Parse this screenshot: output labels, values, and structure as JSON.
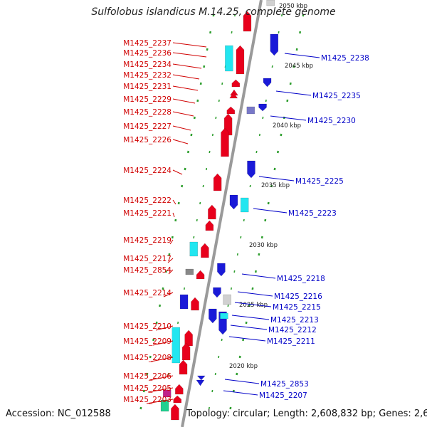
{
  "title": "Sulfolobus islandicus M.14.25, complete genome",
  "footer": {
    "accession": "Accession: NC_012588",
    "topology": "Topology: circular; Length: 2,608,832 bp; Genes: 2,655"
  },
  "colors": {
    "forward_cds": "#e8001c",
    "reverse_cds": "#1a1ad8",
    "rna": "#22e6f0",
    "pseudo": "#888888",
    "misc": "#d0d0d0",
    "ticks": "#2e9e2e",
    "backbone": "#9a9a9a",
    "forward_label": "#d00000",
    "reverse_label": "#0000c8"
  },
  "scale_labels": [
    "2050 kbp",
    "2045 kbp",
    "2040 kbp",
    "2035 kbp",
    "2030 kbp",
    "2025 kbp",
    "2020 kbp"
  ],
  "forward_genes": [
    "M1425_2237",
    "M1425_2236",
    "M1425_2234",
    "M1425_2232",
    "M1425_2231",
    "M1425_2229",
    "M1425_2228",
    "M1425_2227",
    "M1425_2226",
    "M1425_2224",
    "M1425_2222",
    "M1425_2221",
    "M1425_2219",
    "M1425_2217",
    "M1425_2854",
    "M1425_2214",
    "M1425_2210",
    "M1425_2209",
    "M1425_2208",
    "M1425_2206",
    "M1425_2205",
    "M1425_2203"
  ],
  "reverse_genes": [
    "M1425_2238",
    "M1425_2235",
    "M1425_2230",
    "M1425_2225",
    "M1425_2223",
    "M1425_2218",
    "M1425_2216",
    "M1425_2215",
    "M1425_2213",
    "M1425_2212",
    "M1425_2211",
    "M1425_2853",
    "M1425_2207"
  ]
}
